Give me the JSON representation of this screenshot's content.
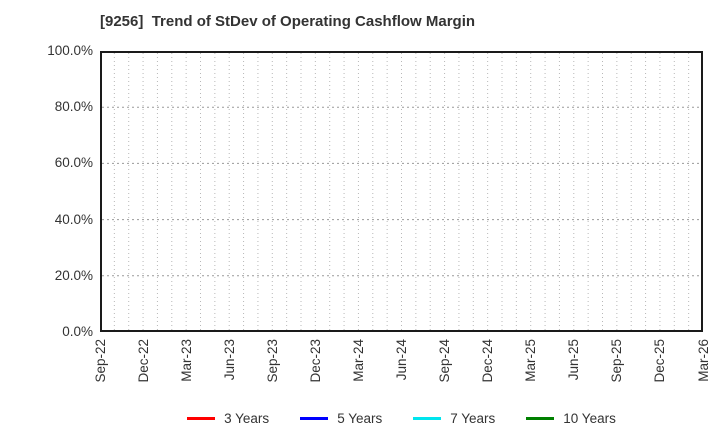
{
  "chart_data": {
    "type": "line",
    "title": "[9256]  Trend of StDev of Operating Cashflow Margin",
    "x_tick_labels": [
      "Sep-22",
      "Dec-22",
      "Mar-23",
      "Jun-23",
      "Sep-23",
      "Dec-23",
      "Mar-24",
      "Jun-24",
      "Sep-24",
      "Dec-24",
      "Mar-25",
      "Jun-25",
      "Sep-25",
      "Dec-25",
      "Mar-26"
    ],
    "x_major_interval_months": 3,
    "x_minor_interval_months": 1,
    "y_tick_labels": [
      "0.0%",
      "20.0%",
      "40.0%",
      "60.0%",
      "80.0%",
      "100.0%"
    ],
    "ylim": [
      0,
      100
    ],
    "grid": true,
    "legend_position": "bottom",
    "series": [
      {
        "name": "3 Years",
        "color": "#ff0000",
        "values": []
      },
      {
        "name": "5 Years",
        "color": "#0000ff",
        "values": []
      },
      {
        "name": "7 Years",
        "color": "#00e5ee",
        "values": []
      },
      {
        "name": "10 Years",
        "color": "#008000",
        "values": []
      }
    ]
  },
  "colors": {
    "background": "#ffffff",
    "text": "#333333",
    "spine": "#1a1a1a",
    "grid_minor": "#b8b8b8",
    "grid_major": "#9a9a9a"
  }
}
